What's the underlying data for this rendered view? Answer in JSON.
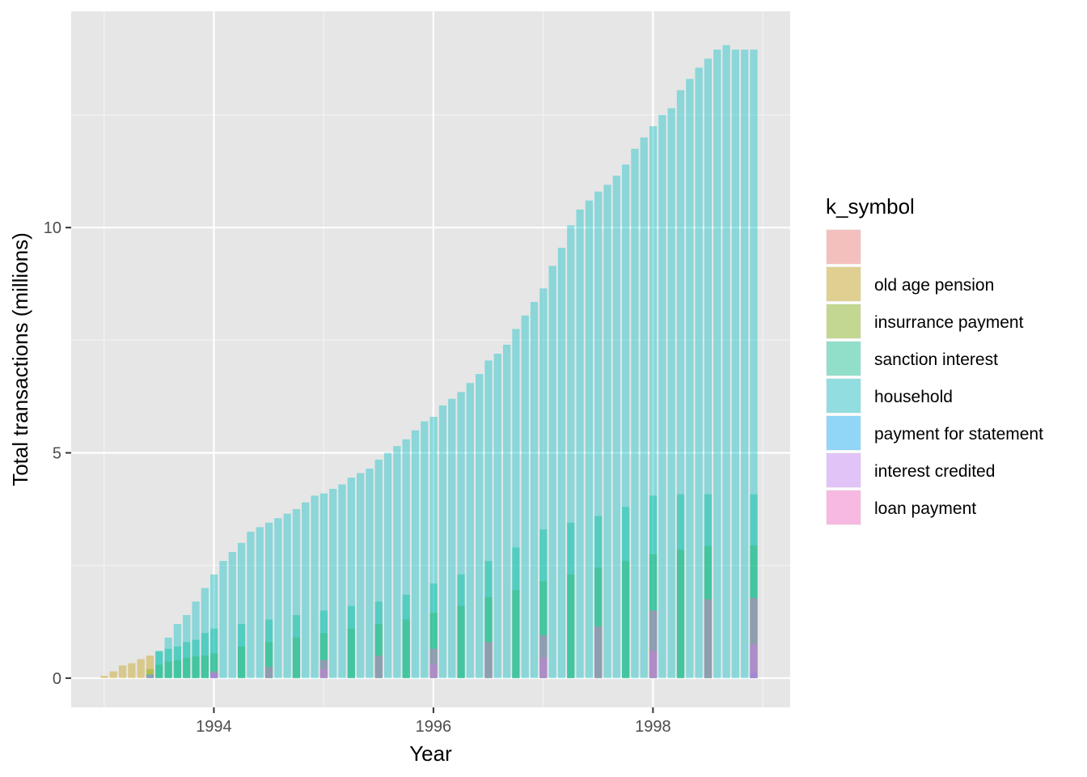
{
  "chart_data": {
    "type": "bar",
    "stacking": "overlapping (position identity, semi-transparent)",
    "xlabel": "Year",
    "ylabel": "Total transactions (millions)",
    "xlim": [
      1992.7,
      1999.25
    ],
    "ylim": [
      -0.65,
      14.8
    ],
    "x_ticks": [
      1994,
      1996,
      1998
    ],
    "x_tick_labels": [
      "1994",
      "1996",
      "1998"
    ],
    "y_ticks": [
      0,
      5,
      10
    ],
    "y_tick_labels": [
      "0",
      "5",
      "10"
    ],
    "grid": true,
    "legend": {
      "title": "k_symbol",
      "placement": "right"
    },
    "colors": {
      "blank": "#F8766D",
      "old age pension": "#C49A00",
      "insurrance payment": "#7CAE00",
      "sanction interest": "#00C08B",
      "household": "#00BFC4",
      "payment for statement": "#00A9FF",
      "interest credited": "#C77CFF",
      "loan payment": "#FF61C9"
    },
    "bar_opacity": 0.4,
    "series": [
      {
        "name": "",
        "color": "#F8766D",
        "values": []
      },
      {
        "name": "old age pension",
        "color": "#C49A00",
        "values": [
          [
            "1993-01",
            0.05
          ],
          [
            "1993-02",
            0.15
          ],
          [
            "1993-03",
            0.28
          ],
          [
            "1993-04",
            0.33
          ],
          [
            "1993-05",
            0.42
          ],
          [
            "1993-06",
            0.5
          ]
        ]
      },
      {
        "name": "insurrance payment",
        "color": "#7CAE00",
        "values": [
          [
            "1993-06",
            0.2
          ],
          [
            "1993-07",
            0.3
          ],
          [
            "1993-08",
            0.37
          ],
          [
            "1993-09",
            0.4
          ],
          [
            "1993-10",
            0.45
          ],
          [
            "1993-11",
            0.48
          ],
          [
            "1993-12",
            0.5
          ],
          [
            "1994-01",
            0.55
          ],
          [
            "1994-04",
            0.7
          ],
          [
            "1994-07",
            0.8
          ],
          [
            "1994-10",
            0.9
          ],
          [
            "1995-01",
            1.0
          ],
          [
            "1995-04",
            1.1
          ],
          [
            "1995-07",
            1.2
          ],
          [
            "1995-10",
            1.3
          ],
          [
            "1996-01",
            1.45
          ],
          [
            "1996-04",
            1.6
          ],
          [
            "1996-07",
            1.8
          ],
          [
            "1996-10",
            1.95
          ],
          [
            "1997-01",
            2.15
          ],
          [
            "1997-04",
            2.3
          ],
          [
            "1997-07",
            2.45
          ],
          [
            "1997-10",
            2.6
          ],
          [
            "1998-01",
            2.75
          ],
          [
            "1998-04",
            2.85
          ],
          [
            "1998-07",
            2.93
          ],
          [
            "1998-12",
            2.95
          ]
        ]
      },
      {
        "name": "sanction interest",
        "color": "#00C08B",
        "values": [
          [
            "1993-07",
            0.6
          ],
          [
            "1993-08",
            0.65
          ],
          [
            "1993-09",
            0.7
          ],
          [
            "1993-10",
            0.8
          ],
          [
            "1993-11",
            0.85
          ],
          [
            "1993-12",
            1.0
          ],
          [
            "1994-01",
            1.1
          ],
          [
            "1994-04",
            1.2
          ],
          [
            "1994-07",
            1.3
          ],
          [
            "1994-10",
            1.4
          ],
          [
            "1995-01",
            1.5
          ],
          [
            "1995-04",
            1.6
          ],
          [
            "1995-07",
            1.7
          ],
          [
            "1995-10",
            1.85
          ],
          [
            "1996-01",
            2.1
          ],
          [
            "1996-04",
            2.3
          ],
          [
            "1996-07",
            2.6
          ],
          [
            "1996-10",
            2.9
          ],
          [
            "1997-01",
            3.3
          ],
          [
            "1997-04",
            3.45
          ],
          [
            "1997-07",
            3.6
          ],
          [
            "1997-10",
            3.8
          ],
          [
            "1998-01",
            4.05
          ],
          [
            "1998-04",
            4.08
          ],
          [
            "1998-07",
            4.08
          ],
          [
            "1998-12",
            4.08
          ]
        ]
      },
      {
        "name": "household",
        "color": "#00BFC4",
        "values": [
          [
            "1993-07",
            0.6
          ],
          [
            "1993-08",
            0.9
          ],
          [
            "1993-09",
            1.2
          ],
          [
            "1993-10",
            1.4
          ],
          [
            "1993-11",
            1.7
          ],
          [
            "1993-12",
            2.0
          ],
          [
            "1994-01",
            2.3
          ],
          [
            "1994-02",
            2.6
          ],
          [
            "1994-03",
            2.8
          ],
          [
            "1994-04",
            3.0
          ],
          [
            "1994-05",
            3.25
          ],
          [
            "1994-06",
            3.35
          ],
          [
            "1994-07",
            3.45
          ],
          [
            "1994-08",
            3.55
          ],
          [
            "1994-09",
            3.65
          ],
          [
            "1994-10",
            3.75
          ],
          [
            "1994-11",
            3.9
          ],
          [
            "1994-12",
            4.05
          ],
          [
            "1995-01",
            4.1
          ],
          [
            "1995-02",
            4.2
          ],
          [
            "1995-03",
            4.3
          ],
          [
            "1995-04",
            4.45
          ],
          [
            "1995-05",
            4.55
          ],
          [
            "1995-06",
            4.65
          ],
          [
            "1995-07",
            4.85
          ],
          [
            "1995-08",
            5.0
          ],
          [
            "1995-09",
            5.15
          ],
          [
            "1995-10",
            5.3
          ],
          [
            "1995-11",
            5.5
          ],
          [
            "1995-12",
            5.7
          ],
          [
            "1996-01",
            5.8
          ],
          [
            "1996-02",
            6.05
          ],
          [
            "1996-03",
            6.2
          ],
          [
            "1996-04",
            6.35
          ],
          [
            "1996-05",
            6.55
          ],
          [
            "1996-06",
            6.75
          ],
          [
            "1996-07",
            7.05
          ],
          [
            "1996-08",
            7.2
          ],
          [
            "1996-09",
            7.4
          ],
          [
            "1996-10",
            7.75
          ],
          [
            "1996-11",
            8.05
          ],
          [
            "1996-12",
            8.35
          ],
          [
            "1997-01",
            8.65
          ],
          [
            "1997-02",
            9.15
          ],
          [
            "1997-03",
            9.55
          ],
          [
            "1997-04",
            10.05
          ],
          [
            "1997-05",
            10.4
          ],
          [
            "1997-06",
            10.6
          ],
          [
            "1997-07",
            10.8
          ],
          [
            "1997-08",
            10.95
          ],
          [
            "1997-09",
            11.15
          ],
          [
            "1997-10",
            11.4
          ],
          [
            "1997-11",
            11.75
          ],
          [
            "1997-12",
            12.0
          ],
          [
            "1998-01",
            12.25
          ],
          [
            "1998-02",
            12.5
          ],
          [
            "1998-03",
            12.65
          ],
          [
            "1998-04",
            13.05
          ],
          [
            "1998-05",
            13.3
          ],
          [
            "1998-06",
            13.55
          ],
          [
            "1998-07",
            13.75
          ],
          [
            "1998-08",
            13.95
          ],
          [
            "1998-09",
            14.05
          ],
          [
            "1998-10",
            13.95
          ],
          [
            "1998-11",
            13.95
          ],
          [
            "1998-12",
            13.95
          ]
        ]
      },
      {
        "name": "payment for statement",
        "color": "#00A9FF",
        "values": [
          [
            "1993-06",
            0.08
          ],
          [
            "1994-01",
            0.1
          ],
          [
            "1998-12",
            0.12
          ]
        ]
      },
      {
        "name": "interest credited",
        "color": "#C77CFF",
        "values": [
          [
            "1993-06",
            0.06
          ],
          [
            "1994-01",
            0.1
          ],
          [
            "1995-01",
            0.2
          ],
          [
            "1996-01",
            0.3
          ],
          [
            "1997-01",
            0.45
          ],
          [
            "1998-01",
            0.6
          ],
          [
            "1998-12",
            0.75
          ]
        ]
      },
      {
        "name": "loan payment",
        "color": "#FF61C9",
        "values": [
          [
            "1994-01",
            0.15
          ],
          [
            "1994-07",
            0.25
          ],
          [
            "1995-01",
            0.4
          ],
          [
            "1995-07",
            0.5
          ],
          [
            "1996-01",
            0.65
          ],
          [
            "1996-07",
            0.8
          ],
          [
            "1997-01",
            0.95
          ],
          [
            "1997-07",
            1.15
          ],
          [
            "1998-01",
            1.5
          ],
          [
            "1998-07",
            1.75
          ],
          [
            "1998-12",
            1.78
          ]
        ]
      }
    ]
  }
}
